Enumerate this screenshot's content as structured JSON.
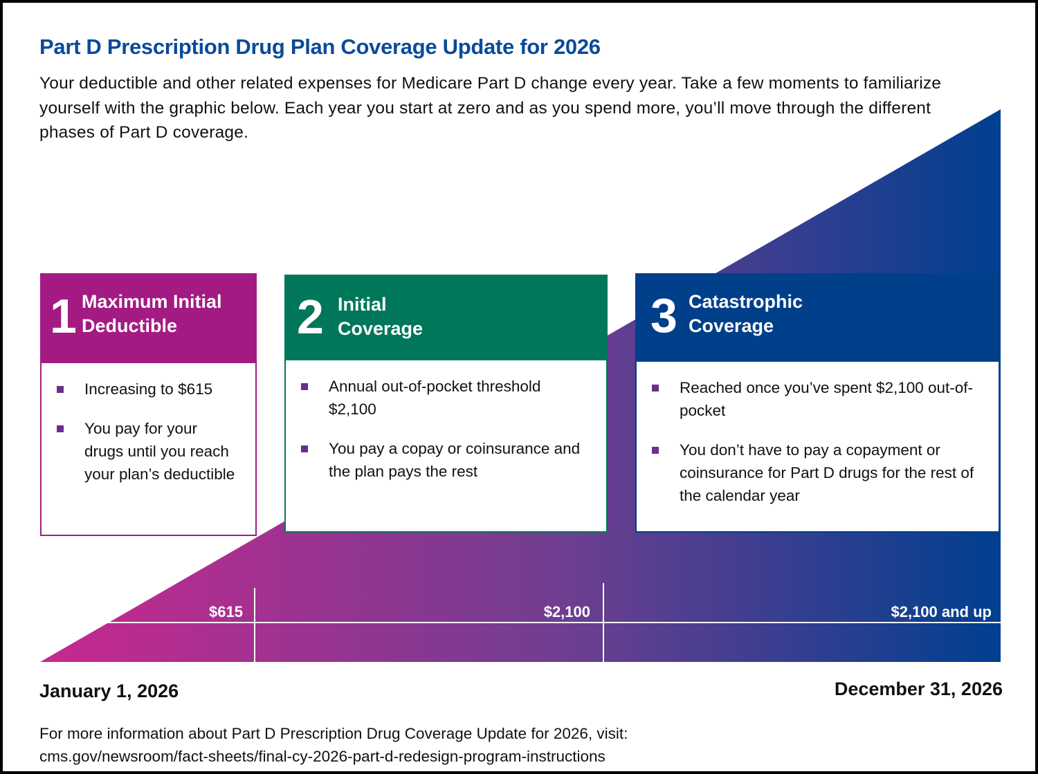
{
  "title": "Part D Prescription Drug Plan Coverage Update for 2026",
  "intro": "Your deductible and other related expenses for Medicare Part D change every year. Take a few moments to familiarize yourself with the graphic below. Each year you start at zero and as you spend more, you’ll move through the different phases of Part D coverage.",
  "colors": {
    "title": "#0a4a9a",
    "phase1": "#a31b82",
    "phase2": "#00775a",
    "phase3": "#003f8a",
    "bullet": "#6a2f8a"
  },
  "phases": [
    {
      "number": "1",
      "title_line1": "Maximum Initial",
      "title_line2": "Deductible",
      "bullets": [
        "Increasing to $615",
        "You pay for your drugs until you reach your plan’s deductible"
      ]
    },
    {
      "number": "2",
      "title_line1": "Initial",
      "title_line2": "Coverage",
      "bullets": [
        "Annual out-of-pocket threshold $2,100",
        "You pay a copay or coinsurance and the plan pays the rest"
      ]
    },
    {
      "number": "3",
      "title_line1": "Catastrophic",
      "title_line2": "Coverage",
      "bullets": [
        "Reached once you’ve spent $2,100 out-of-pocket",
        "You don’t have to pay a copayment or coinsurance for Part D drugs for the rest of the calendar year"
      ]
    }
  ],
  "thresholds": [
    "$615",
    "$2,100",
    "$2,100 and up"
  ],
  "start_date": "January 1, 2026",
  "end_date": "December 31, 2026",
  "footer": {
    "line1": "For more information about Part D Prescription Drug Coverage Update for 2026, visit:",
    "link": "cms.gov/newsroom/fact-sheets/final-cy-2026-part-d-redesign-program-instructions"
  }
}
